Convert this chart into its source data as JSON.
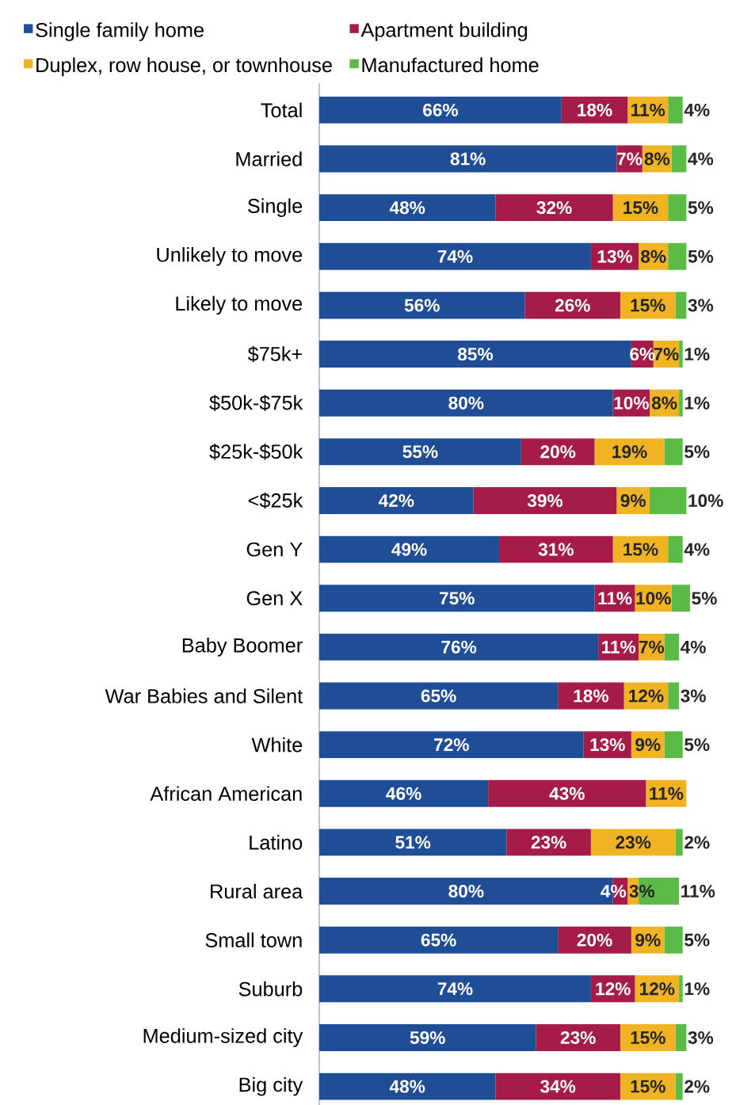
{
  "chart_data": {
    "type": "bar",
    "orientation": "horizontal",
    "stacked": true,
    "legend": "top",
    "tick_labels": "y",
    "categories": [
      "Total",
      "Married",
      "Single",
      "Unlikely to move",
      "Likely to move",
      "$75k+",
      "$50k-$75k",
      "$25k-$50k",
      "<$25k",
      "Gen Y",
      "Gen X",
      "Baby Boomer",
      "War Babies and Silent",
      "White",
      "African American",
      "Latino",
      "Rural area",
      "Small town",
      "Suburb",
      "Medium-sized city",
      "Big city"
    ],
    "series": [
      {
        "name": "Single family home",
        "color": "#1f4e96",
        "values": [
          66,
          81,
          48,
          74,
          56,
          85,
          80,
          55,
          42,
          49,
          75,
          76,
          65,
          72,
          46,
          51,
          80,
          65,
          74,
          59,
          48
        ],
        "value_labels": [
          "66%",
          "81%",
          "48%",
          "74%",
          "56%",
          "85%",
          "80%",
          "55%",
          "42%",
          "49%",
          "75%",
          "76%",
          "65%",
          "72%",
          "46%",
          "51%",
          "80%",
          "65%",
          "74%",
          "59%",
          "48%"
        ]
      },
      {
        "name": "Apartment building",
        "color": "#a51c48",
        "values": [
          18,
          7,
          32,
          13,
          26,
          6,
          10,
          20,
          39,
          31,
          11,
          11,
          18,
          13,
          43,
          23,
          4,
          20,
          12,
          23,
          34
        ],
        "value_labels": [
          "18%",
          "7%",
          "32%",
          "13%",
          "26%",
          "6%",
          "10%",
          "20%",
          "39%",
          "31%",
          "11%",
          "11%",
          "18%",
          "13%",
          "43%",
          "23%",
          "4%",
          "20%",
          "12%",
          "23%",
          "34%"
        ]
      },
      {
        "name": "Duplex, row house, or townhouse",
        "color": "#f0b323",
        "values": [
          11,
          8,
          15,
          8,
          15,
          7,
          8,
          19,
          9,
          15,
          10,
          7,
          12,
          9,
          11,
          23,
          3,
          9,
          12,
          15,
          15
        ],
        "value_labels": [
          "11%",
          "8%",
          "15%",
          "8%",
          "15%",
          "7%",
          "8%",
          "19%",
          "9%",
          "15%",
          "10%",
          "7%",
          "12%",
          "9%",
          "11%",
          "23%",
          "3%",
          "9%",
          "12%",
          "15%",
          "15%"
        ]
      },
      {
        "name": "Manufactured home",
        "color": "#5bbb46",
        "values": [
          4,
          4,
          5,
          5,
          3,
          1,
          1,
          5,
          10,
          4,
          5,
          4,
          3,
          5,
          null,
          2,
          11,
          5,
          1,
          3,
          2
        ],
        "value_labels": [
          "4%",
          "4%",
          "5%",
          "5%",
          "3%",
          "1%",
          "1%",
          "5%",
          "10%",
          "4%",
          "5%",
          "4%",
          "3%",
          "5%",
          null,
          "2%",
          "11%",
          "5%",
          "1%",
          "3%",
          "2%"
        ]
      }
    ]
  }
}
